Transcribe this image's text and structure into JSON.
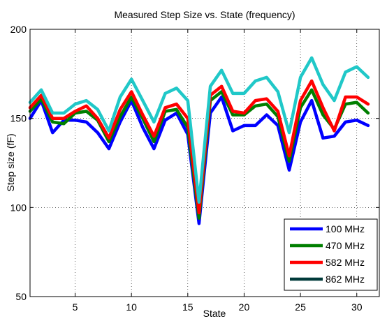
{
  "chart_data": {
    "type": "line",
    "title": "Measured Step Size vs. State (frequency)",
    "xlabel": "State",
    "ylabel": "Step size (fF)",
    "xlim": [
      1,
      32
    ],
    "ylim": [
      50,
      200
    ],
    "xticks": [
      5,
      10,
      15,
      20,
      25,
      30
    ],
    "yticks": [
      50,
      100,
      150,
      200
    ],
    "grid": true,
    "legend": "bottom-right",
    "x": [
      1,
      2,
      3,
      4,
      5,
      6,
      7,
      8,
      9,
      10,
      11,
      12,
      13,
      14,
      15,
      16,
      17,
      18,
      19,
      20,
      21,
      22,
      23,
      24,
      25,
      26,
      27,
      28,
      29,
      30,
      31
    ],
    "series": [
      {
        "name": "100 MHz",
        "color": "#0000ff",
        "values": [
          150,
          160,
          142,
          149,
          149,
          148,
          142,
          133,
          148,
          160,
          145,
          133,
          149,
          153,
          141,
          91,
          153,
          162,
          143,
          146,
          146,
          152,
          146,
          121,
          148,
          160,
          139,
          140,
          148,
          149,
          146
        ]
      },
      {
        "name": "470 MHz",
        "color": "#007f00",
        "values": [
          154,
          161,
          148,
          147,
          153,
          154,
          149,
          137,
          151,
          162,
          150,
          137,
          154,
          155,
          145,
          94,
          160,
          165,
          152,
          152,
          157,
          158,
          151,
          126,
          156,
          166,
          152,
          144,
          158,
          159,
          153
        ]
      },
      {
        "name": "582 MHz",
        "color": "#ff0000",
        "values": [
          156,
          163,
          150,
          150,
          154,
          157,
          150,
          139,
          155,
          165,
          152,
          140,
          156,
          158,
          150,
          97,
          163,
          168,
          154,
          153,
          160,
          161,
          154,
          129,
          160,
          171,
          156,
          143,
          162,
          162,
          158
        ]
      },
      {
        "name": "862 MHz",
        "color": "#20c8c8",
        "values": [
          159,
          166,
          153,
          153,
          158,
          160,
          155,
          143,
          162,
          172,
          160,
          148,
          164,
          167,
          160,
          103,
          168,
          177,
          164,
          164,
          171,
          173,
          165,
          142,
          173,
          184,
          169,
          160,
          176,
          179,
          173
        ]
      }
    ]
  },
  "legend_swatch_dark": "#003a3a"
}
